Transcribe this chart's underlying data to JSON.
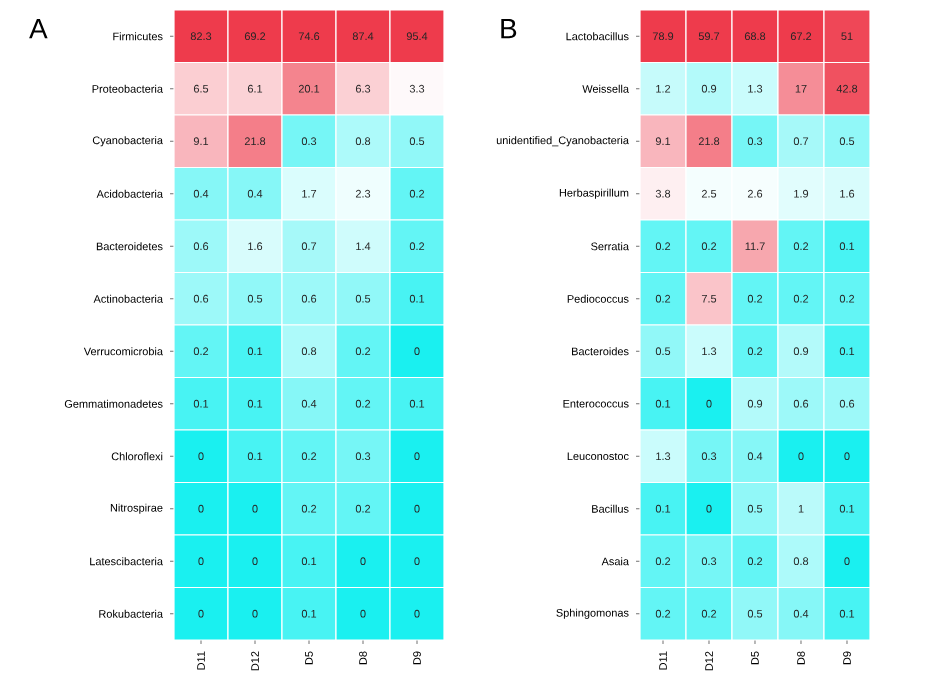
{
  "chart_data": [
    {
      "type": "heatmap",
      "title": "A",
      "categories": [
        "D11",
        "D12",
        "D5",
        "D8",
        "D9"
      ],
      "y_categories": [
        "Firmicutes",
        "Proteobacteria",
        "Cyanobacteria",
        "Acidobacteria",
        "Bacteroidetes",
        "Actinobacteria",
        "Verrucomicrobia",
        "Gemmatimonadetes",
        "Chloroflexi",
        "Nitrospirae",
        "Latescibacteria",
        "Rokubacteria"
      ],
      "cells": [
        [
          82.3,
          69.2,
          74.6,
          87.4,
          95.4
        ],
        [
          6.5,
          6.1,
          20.1,
          6.3,
          3.3
        ],
        [
          9.1,
          21.8,
          0.3,
          0.8,
          0.5
        ],
        [
          0.4,
          0.4,
          1.7,
          2.3,
          0.2
        ],
        [
          0.6,
          1.6,
          0.7,
          1.4,
          0.2
        ],
        [
          0.6,
          0.5,
          0.6,
          0.5,
          0.1
        ],
        [
          0.2,
          0.1,
          0.8,
          0.2,
          0
        ],
        [
          0.1,
          0.1,
          0.4,
          0.2,
          0.1
        ],
        [
          0,
          0.1,
          0.2,
          0.3,
          0
        ],
        [
          0,
          0,
          0.2,
          0.2,
          0
        ],
        [
          0,
          0,
          0.1,
          0,
          0
        ],
        [
          0,
          0,
          0.1,
          0,
          0
        ]
      ],
      "data_labels": true
    },
    {
      "type": "heatmap",
      "title": "B",
      "categories": [
        "D11",
        "D12",
        "D5",
        "D8",
        "D9"
      ],
      "y_categories": [
        "Lactobacillus",
        "Weissella",
        "unidentified_Cyanobacteria",
        "Herbaspirillum",
        "Serratia",
        "Pediococcus",
        "Bacteroides",
        "Enterococcus",
        "Leuconostoc",
        "Bacillus",
        "Asaia",
        "Sphingomonas"
      ],
      "cells": [
        [
          78.9,
          59.7,
          68.8,
          67.2,
          51
        ],
        [
          1.2,
          0.9,
          1.3,
          17,
          42.8
        ],
        [
          9.1,
          21.8,
          0.3,
          0.7,
          0.5
        ],
        [
          3.8,
          2.5,
          2.6,
          1.9,
          1.6
        ],
        [
          0.2,
          0.2,
          11.7,
          0.2,
          0.1
        ],
        [
          0.2,
          7.5,
          0.2,
          0.2,
          0.2
        ],
        [
          0.5,
          1.3,
          0.2,
          0.9,
          0.1
        ],
        [
          0.1,
          0,
          0.9,
          0.6,
          0.6
        ],
        [
          1.3,
          0.3,
          0.4,
          0,
          0
        ],
        [
          0.1,
          0,
          0.5,
          1,
          0.1
        ],
        [
          0.2,
          0.3,
          0.2,
          0.8,
          0
        ],
        [
          0.2,
          0.2,
          0.5,
          0.4,
          0.1
        ]
      ],
      "data_labels": true
    }
  ]
}
